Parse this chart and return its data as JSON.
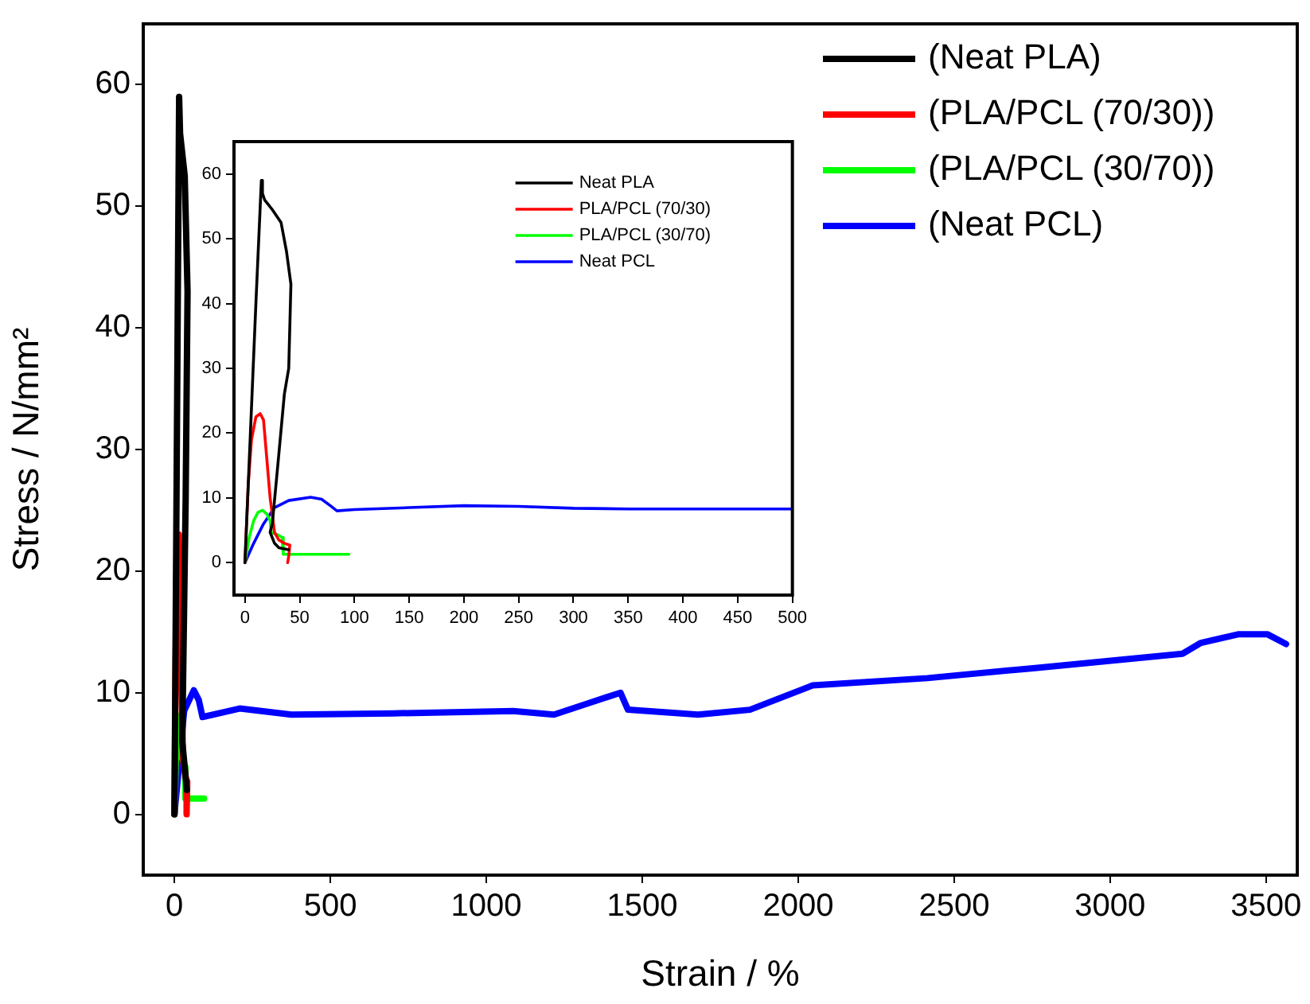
{
  "chart_data": [
    {
      "type": "line",
      "xlabel": "Strain / %",
      "ylabel": "Stress / N/mm²",
      "xlim": [
        -100,
        3600
      ],
      "ylim": [
        -5,
        65
      ],
      "xticks": [
        0,
        500,
        1000,
        1500,
        2000,
        2500,
        3000,
        3500
      ],
      "yticks": [
        0,
        10,
        20,
        30,
        40,
        50,
        60
      ],
      "legend": "top right",
      "series": [
        {
          "name": "(Neat PLA)",
          "color": "#000000",
          "x": [
            0,
            15,
            18,
            33,
            42,
            36,
            25,
            40
          ],
          "values": [
            0,
            59,
            56,
            52.5,
            43,
            26,
            6,
            2
          ]
        },
        {
          "name": "(PLA/PCL (70/30))",
          "color": "#ff0000",
          "x": [
            0,
            6,
            14,
            20,
            27,
            36,
            41,
            39
          ],
          "values": [
            0,
            19,
            23,
            16,
            4.7,
            3,
            2.7,
            0
          ]
        },
        {
          "name": "(PLA/PCL (30/70))",
          "color": "#00ff00",
          "x": [
            0,
            4,
            8,
            12,
            16,
            20,
            23,
            24,
            30,
            34,
            35,
            60,
            95
          ],
          "values": [
            0,
            4,
            6.5,
            7.8,
            8.1,
            7.5,
            6.5,
            4.7,
            4.3,
            3.9,
            1.3,
            1.3,
            1.3
          ]
        },
        {
          "name": "(Neat PCL)",
          "color": "#0000ff",
          "x": [
            0,
            31,
            62,
            78,
            90,
            209,
            375,
            700,
            1086,
            1217,
            1323,
            1430,
            1454,
            1679,
            1845,
            2046,
            2414,
            2746,
            3232,
            3291,
            3410,
            3505,
            3564
          ],
          "values": [
            0,
            8.5,
            10.2,
            9.4,
            8,
            8.7,
            8.2,
            8.3,
            8.5,
            8.2,
            9.1,
            10,
            8.6,
            8.2,
            8.6,
            10.6,
            11.2,
            12,
            13.2,
            14.1,
            14.8,
            14.8,
            14
          ]
        }
      ]
    },
    {
      "type": "line",
      "xlim": [
        -10,
        500
      ],
      "ylim": [
        -5,
        65
      ],
      "xticks": [
        0,
        50,
        100,
        150,
        200,
        250,
        300,
        350,
        400,
        450,
        500
      ],
      "yticks": [
        0,
        10,
        20,
        30,
        40,
        50,
        60
      ],
      "legend": "top right",
      "series": [
        {
          "name": "Neat PLA",
          "color": "#000000",
          "x": [
            0,
            5,
            10,
            15,
            16,
            18,
            25,
            33,
            38,
            42,
            40,
            36,
            30,
            25,
            23,
            27,
            31,
            40
          ],
          "values": [
            0,
            20,
            40,
            59,
            57,
            56,
            54.5,
            52.5,
            48,
            43,
            30,
            26,
            15,
            6,
            4.7,
            3,
            2.3,
            2
          ]
        },
        {
          "name": "PLA/PCL (70/30)",
          "color": "#ff0000",
          "x": [
            0,
            3,
            6,
            10,
            14,
            17,
            20,
            23,
            27,
            31,
            36,
            41,
            40,
            39
          ],
          "values": [
            0,
            12,
            19,
            22.5,
            23,
            22,
            16,
            10,
            4.7,
            3.5,
            3,
            2.7,
            1,
            0
          ]
        },
        {
          "name": "PLA/PCL (30/70)",
          "color": "#00ff00",
          "x": [
            0,
            4,
            8,
            12,
            16,
            20,
            23,
            24,
            30,
            34,
            35,
            60,
            95
          ],
          "values": [
            0,
            4,
            6.5,
            7.8,
            8.1,
            7.5,
            6.5,
            4.7,
            4.3,
            3.9,
            1.3,
            1.3,
            1.3
          ]
        },
        {
          "name": "Neat PCL",
          "color": "#0000ff",
          "x": [
            0,
            8,
            17,
            27,
            40,
            60,
            70,
            78,
            84,
            100,
            150,
            200,
            250,
            300,
            350,
            400,
            450,
            500
          ],
          "values": [
            0,
            3,
            6,
            8.5,
            9.6,
            10.1,
            9.8,
            8.8,
            8,
            8.2,
            8.5,
            8.8,
            8.7,
            8.4,
            8.3,
            8.3,
            8.3,
            8.3
          ]
        }
      ]
    }
  ]
}
